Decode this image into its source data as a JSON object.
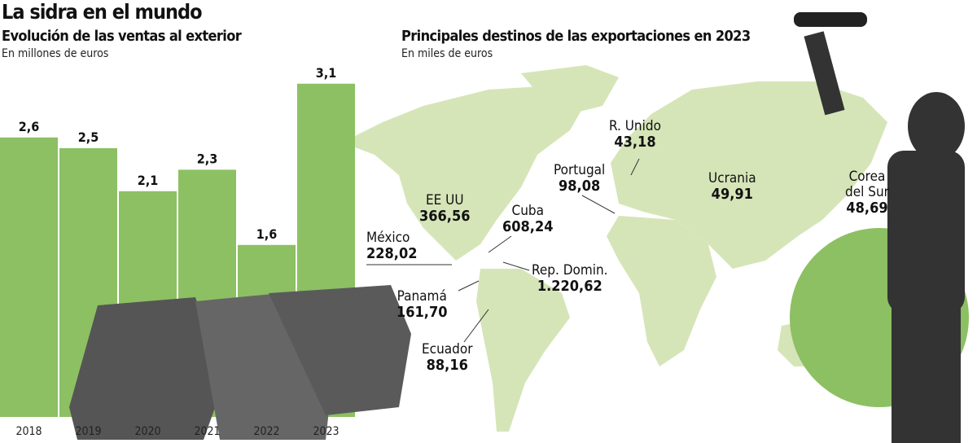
{
  "title": "La sidra en el mundo",
  "colors": {
    "bar": "#8cc063",
    "map": "#d6e5b8",
    "circle": "#8cc063"
  },
  "chart_data": [
    {
      "type": "bar",
      "title": "Evolución de las ventas al exterior",
      "subtitle": "En millones de euros",
      "categories": [
        "2018",
        "2019",
        "2020",
        "2021",
        "2022",
        "2023"
      ],
      "values": [
        2.6,
        2.5,
        2.1,
        2.3,
        1.6,
        3.1
      ],
      "value_labels": [
        "2,6",
        "2,5",
        "2,1",
        "2,3",
        "1,6",
        "3,1"
      ],
      "ylim": [
        0,
        3.1
      ]
    },
    {
      "type": "map",
      "title": "Principales destinos de las exportaciones en 2023",
      "subtitle": "En miles de euros",
      "destinations": [
        {
          "name": "EE UU",
          "value": "366,56"
        },
        {
          "name": "México",
          "value": "228,02"
        },
        {
          "name": "Cuba",
          "value": "608,24"
        },
        {
          "name": "Rep. Domin.",
          "value": "1.220,62"
        },
        {
          "name": "Panamá",
          "value": "161,70"
        },
        {
          "name": "Ecuador",
          "value": "88,16"
        },
        {
          "name": "Portugal",
          "value": "98,08"
        },
        {
          "name": "R. Unido",
          "value": "43,18"
        },
        {
          "name": "Ucrania",
          "value": "49,91"
        },
        {
          "name": "Corea del Sur",
          "value": "48,69"
        }
      ]
    }
  ]
}
